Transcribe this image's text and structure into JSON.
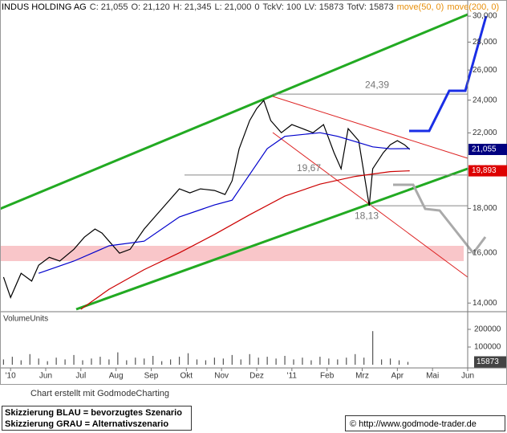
{
  "chart_data": [
    {
      "type": "line",
      "title": "INDUS HOLDING AG",
      "quote": [
        "C: 21,055",
        "O: 21,120",
        "H: 21,345",
        "L: 21,000",
        "0",
        "TckV: 100",
        "LV: 15873",
        "TotV: 15873"
      ],
      "log_scale": true,
      "xlim": [
        -0.3,
        13.0
      ],
      "xticks": [
        {
          "value": 0,
          "label": "'10"
        },
        {
          "value": 1,
          "label": "Jun"
        },
        {
          "value": 2,
          "label": "Jul"
        },
        {
          "value": 3,
          "label": "Aug"
        },
        {
          "value": 4,
          "label": "Sep"
        },
        {
          "value": 5,
          "label": "Okt"
        },
        {
          "value": 6,
          "label": "Nov"
        },
        {
          "value": 7,
          "label": "Dez"
        },
        {
          "value": 8,
          "label": "'11"
        },
        {
          "value": 9,
          "label": "Feb"
        },
        {
          "value": 10,
          "label": "Mrz"
        },
        {
          "value": 11,
          "label": "Apr"
        },
        {
          "value": 12,
          "label": "Mai"
        },
        {
          "value": 13,
          "label": "Jun"
        }
      ],
      "ylim": [
        13.77,
        31.18
      ],
      "yticks": [
        {
          "value": 14,
          "label": "14,000"
        },
        {
          "value": 16,
          "label": "16,000"
        },
        {
          "value": 18,
          "label": "18,000"
        },
        {
          "value": 20,
          "label": "20,000"
        },
        {
          "value": 22,
          "label": "22,000"
        },
        {
          "value": 24,
          "label": "24,000"
        },
        {
          "value": 26,
          "label": "26,000"
        },
        {
          "value": 28,
          "label": "28,000"
        },
        {
          "value": 30,
          "label": "30,000"
        }
      ],
      "series": [
        {
          "color": "#000000",
          "x": [
            -0.2,
            0,
            0.3,
            0.6,
            0.8,
            1.1,
            1.4,
            1.8,
            2.1,
            2.4,
            2.6,
            2.8,
            3.1,
            3.4,
            3.8,
            4.1,
            4.4,
            4.8,
            5.1,
            5.4,
            5.8,
            6.1,
            6.3,
            6.5,
            6.8,
            7,
            7.2,
            7.4,
            7.7,
            8,
            8.3,
            8.6,
            8.9,
            9.2,
            9.4,
            9.6,
            9.9,
            10.2,
            10.3,
            10.6,
            10.8,
            11,
            11.2,
            11.35
          ],
          "values": [
            15.0,
            14.21,
            15.15,
            14.84,
            15.48,
            15.81,
            15.65,
            16.15,
            16.68,
            17.04,
            16.86,
            16.5,
            15.98,
            16.15,
            17.04,
            17.6,
            18.17,
            18.96,
            18.76,
            18.96,
            18.88,
            18.68,
            19.37,
            21.09,
            22.73,
            23.47,
            23.98,
            22.73,
            22.01,
            22.49,
            22.25,
            22.01,
            22.49,
            20.87,
            20.0,
            22.25,
            21.55,
            18.13,
            20.0,
            20.87,
            21.32,
            21.55,
            21.32,
            21.055
          ],
          "last_label": {
            "value": 21.055,
            "label": "21,055",
            "color": "#000080"
          }
        },
        {
          "name": "move(50, 0)",
          "color": "#0000cc",
          "x": [
            0.8,
            1.8,
            2.8,
            3.8,
            4.8,
            5.8,
            6.3,
            6.8,
            7.3,
            7.8,
            8.8,
            9.3,
            9.8,
            10.3,
            10.8,
            11.35
          ],
          "values": [
            15.15,
            15.65,
            16.3,
            16.5,
            17.6,
            18.17,
            18.4,
            19.7,
            21.1,
            21.8,
            22.01,
            21.8,
            21.5,
            21.2,
            21.09,
            21.1
          ]
        },
        {
          "name": "move(200, 0)",
          "color": "#cc0000",
          "x": [
            2.0,
            2.8,
            3.8,
            4.8,
            5.8,
            6.8,
            7.8,
            8.8,
            9.8,
            10.8,
            11.35
          ],
          "values": [
            13.77,
            14.52,
            15.3,
            16.0,
            16.8,
            17.7,
            18.6,
            19.2,
            19.6,
            19.85,
            19.893
          ],
          "last_label": {
            "value": 19.893,
            "label": "19,893",
            "color": "#dd0000"
          }
        }
      ],
      "legend_color": "#e8900c",
      "annotations": [
        {
          "text": "24,39",
          "value": 24.39
        },
        {
          "text": "19,67",
          "value": 19.67
        },
        {
          "text": "18,13",
          "value": 18.13
        }
      ]
    },
    {
      "type": "bar",
      "title": "VolumeUnits",
      "color": "#555555",
      "xlim": [
        -0.3,
        13.0
      ],
      "ylim": [
        0,
        268000
      ],
      "yticks": [
        100000,
        200000
      ],
      "x": [
        -0.2,
        0.05,
        0.3,
        0.55,
        0.8,
        1.05,
        1.3,
        1.55,
        1.8,
        2.05,
        2.3,
        2.55,
        2.8,
        3.05,
        3.3,
        3.55,
        3.8,
        4.05,
        4.3,
        4.55,
        4.8,
        5.05,
        5.3,
        5.55,
        5.8,
        6.05,
        6.3,
        6.55,
        6.8,
        7.05,
        7.3,
        7.55,
        7.8,
        8.05,
        8.3,
        8.55,
        8.8,
        9.05,
        9.3,
        9.55,
        9.8,
        10.05,
        10.3,
        10.55,
        10.8,
        11.05,
        11.3
      ],
      "values": [
        30000,
        45000,
        25000,
        60000,
        35000,
        20000,
        40000,
        30000,
        55000,
        25000,
        35000,
        45000,
        30000,
        70000,
        25000,
        40000,
        35000,
        50000,
        20000,
        30000,
        45000,
        65000,
        30000,
        25000,
        40000,
        35000,
        55000,
        30000,
        60000,
        40000,
        45000,
        35000,
        50000,
        30000,
        40000,
        25000,
        45000,
        35000,
        30000,
        40000,
        60000,
        40000,
        190000,
        30000,
        35000,
        25000,
        15873
      ],
      "last_label": {
        "value": 15873,
        "label": "15873"
      }
    }
  ],
  "footer": {
    "credit": "Chart erstellt mit GodmodeCharting",
    "legend_blue": "Skizzierung BLAU = bevorzugtes Szenario",
    "legend_gray": "Skizzierung GRAU = Alternativszenario",
    "copyright": "© http://www.godmode-trader.de"
  }
}
